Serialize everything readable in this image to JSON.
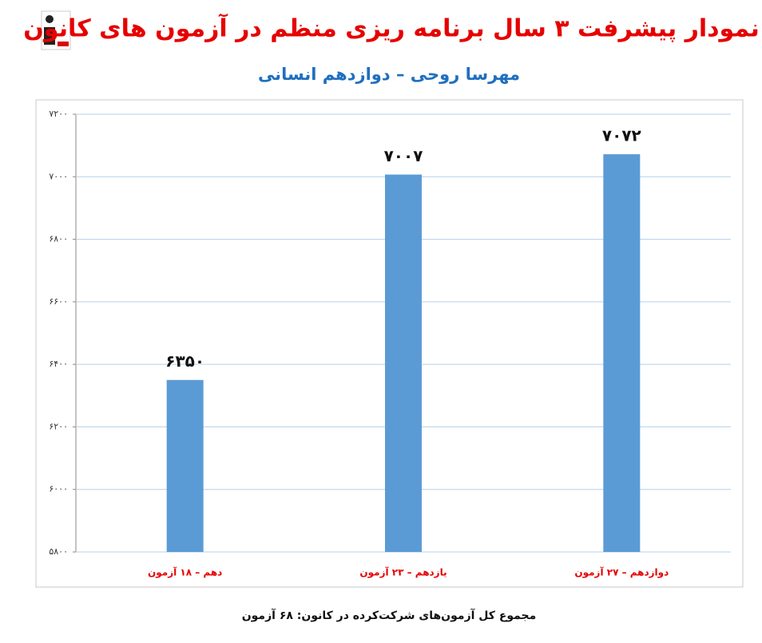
{
  "chart_data": {
    "type": "bar",
    "title": "نمودار پیشرفت ۳ سال برنامه ریزی منظم در آزمون های کانون",
    "subtitle": "مهرسا روحی – دوازدهم انسانی",
    "categories": [
      "دهم – ۱۸ آزمون",
      "یازدهم – ۲۳ آزمون",
      "دوازدهم – ۲۷ آزمون"
    ],
    "values": [
      6350,
      7007,
      7072
    ],
    "value_labels": [
      "۶۳۵۰",
      "۷۰۰۷",
      "۷۰۷۲"
    ],
    "color": "#5b9bd5",
    "ylim": [
      5800,
      7200
    ],
    "yticks": [
      {
        "value": 5800,
        "label": "۵۸۰۰"
      },
      {
        "value": 6000,
        "label": "۶۰۰۰"
      },
      {
        "value": 6200,
        "label": "۶۲۰۰"
      },
      {
        "value": 6400,
        "label": "۶۴۰۰"
      },
      {
        "value": 6600,
        "label": "۶۶۰۰"
      },
      {
        "value": 6800,
        "label": "۶۸۰۰"
      },
      {
        "value": 7000,
        "label": "۷۰۰۰"
      },
      {
        "value": 7200,
        "label": "۷۲۰۰"
      }
    ],
    "grid": true,
    "footnote": "مجموع کل آزمون‌های شرکت‌کرده در کانون: ۶۸ آزمون"
  }
}
